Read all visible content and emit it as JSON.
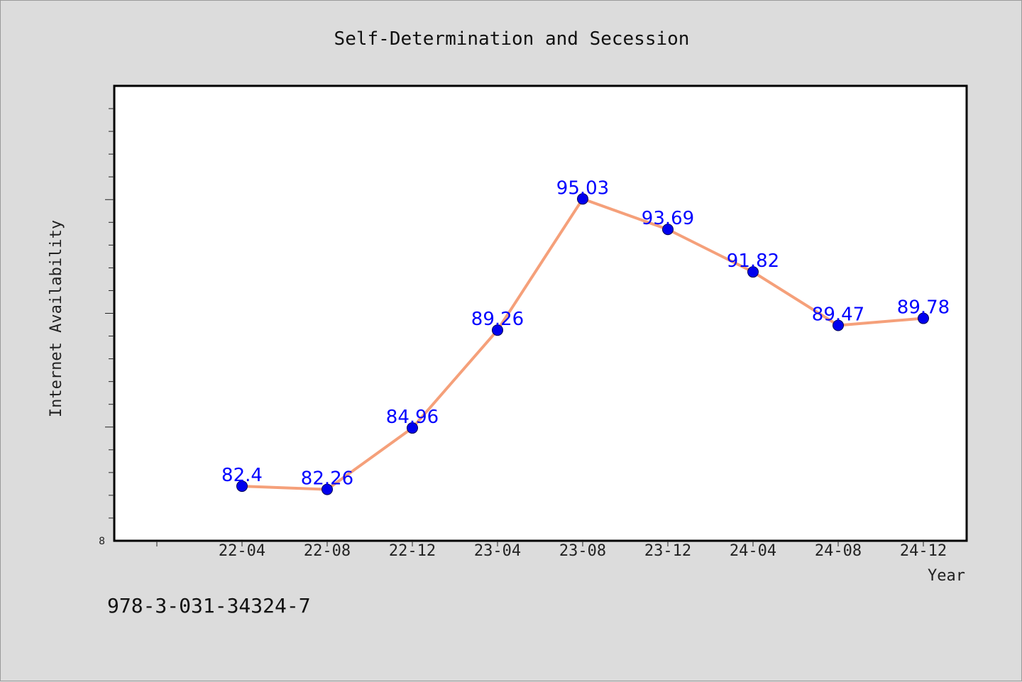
{
  "chart_data": {
    "type": "line",
    "title": "Self-Determination and Secession",
    "xlabel": "Year",
    "ylabel": "Internet Availability",
    "categories": [
      "22-04",
      "22-08",
      "22-12",
      "23-04",
      "23-08",
      "23-12",
      "24-04",
      "24-08",
      "24-12"
    ],
    "series": [
      {
        "values": [
          82.4,
          82.26,
          84.96,
          89.26,
          95.03,
          93.69,
          91.82,
          89.47,
          89.78
        ]
      }
    ],
    "ylim": [
      80,
      100
    ],
    "y_tick_labels": [
      "8"
    ],
    "data_labels": [
      "82.4",
      "82.26",
      "84.96",
      "89.26",
      "95.03",
      "93.69",
      "91.82",
      "89.47",
      "89.78"
    ],
    "colors": {
      "line": "#f5a07a",
      "marker": "#0000ee",
      "label": "#0000ff",
      "plot_bg": "#ffffff",
      "page_bg": "#dcdcdc"
    },
    "grid": false,
    "legend": "none"
  },
  "footer_text": "978-3-031-34324-7"
}
